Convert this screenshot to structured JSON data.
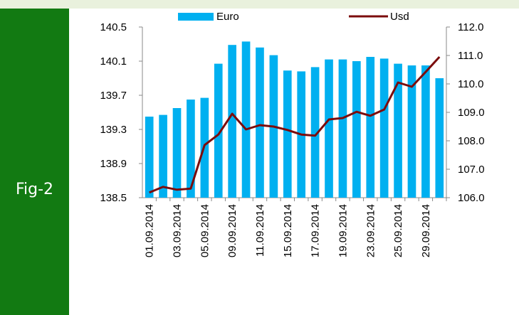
{
  "label": "Fig-2",
  "chart_data": {
    "type": "bar-line",
    "categories": [
      "01.09.2014",
      null,
      "03.09.2014",
      null,
      "05.09.2014",
      null,
      "09.09.2014",
      null,
      "11.09.2014",
      null,
      "15.09.2014",
      null,
      "17.09.2014",
      null,
      "19.09.2014",
      null,
      "23.09.2014",
      null,
      "25.09.2014",
      null,
      "29.09.2014",
      null
    ],
    "series": [
      {
        "name": "Euro",
        "type": "bar",
        "color": "#00b0f0",
        "axis": "y",
        "values": [
          139.45,
          139.47,
          139.55,
          139.65,
          139.67,
          140.07,
          140.29,
          140.33,
          140.26,
          140.17,
          139.99,
          139.98,
          140.03,
          140.12,
          140.12,
          140.1,
          140.15,
          140.13,
          140.07,
          140.05,
          140.05,
          139.9
        ]
      },
      {
        "name": "Usd",
        "type": "line",
        "color": "#7b0c0c",
        "axis": "y2",
        "values": [
          106.18,
          106.38,
          106.28,
          106.32,
          107.85,
          108.22,
          108.95,
          108.4,
          108.55,
          108.5,
          108.38,
          108.22,
          108.18,
          108.75,
          108.8,
          109.02,
          108.88,
          109.1,
          110.05,
          109.9,
          110.42,
          110.95
        ]
      }
    ],
    "ylim": [
      138.5,
      140.5
    ],
    "yticks": [
      138.5,
      138.9,
      139.3,
      139.7,
      140.1,
      140.5
    ],
    "y2lim": [
      106.0,
      112.0
    ],
    "y2ticks": [
      {
        "value": 106,
        "label": "106.0"
      },
      {
        "value": 107,
        "label": "107.0"
      },
      {
        "value": 108,
        "label": "108.0"
      },
      {
        "value": 109,
        "label": "109.0"
      },
      {
        "value": 110,
        "label": "110.0"
      },
      {
        "value": 111,
        "label": "111.0"
      },
      {
        "value": 112,
        "label": "112.0"
      }
    ]
  }
}
